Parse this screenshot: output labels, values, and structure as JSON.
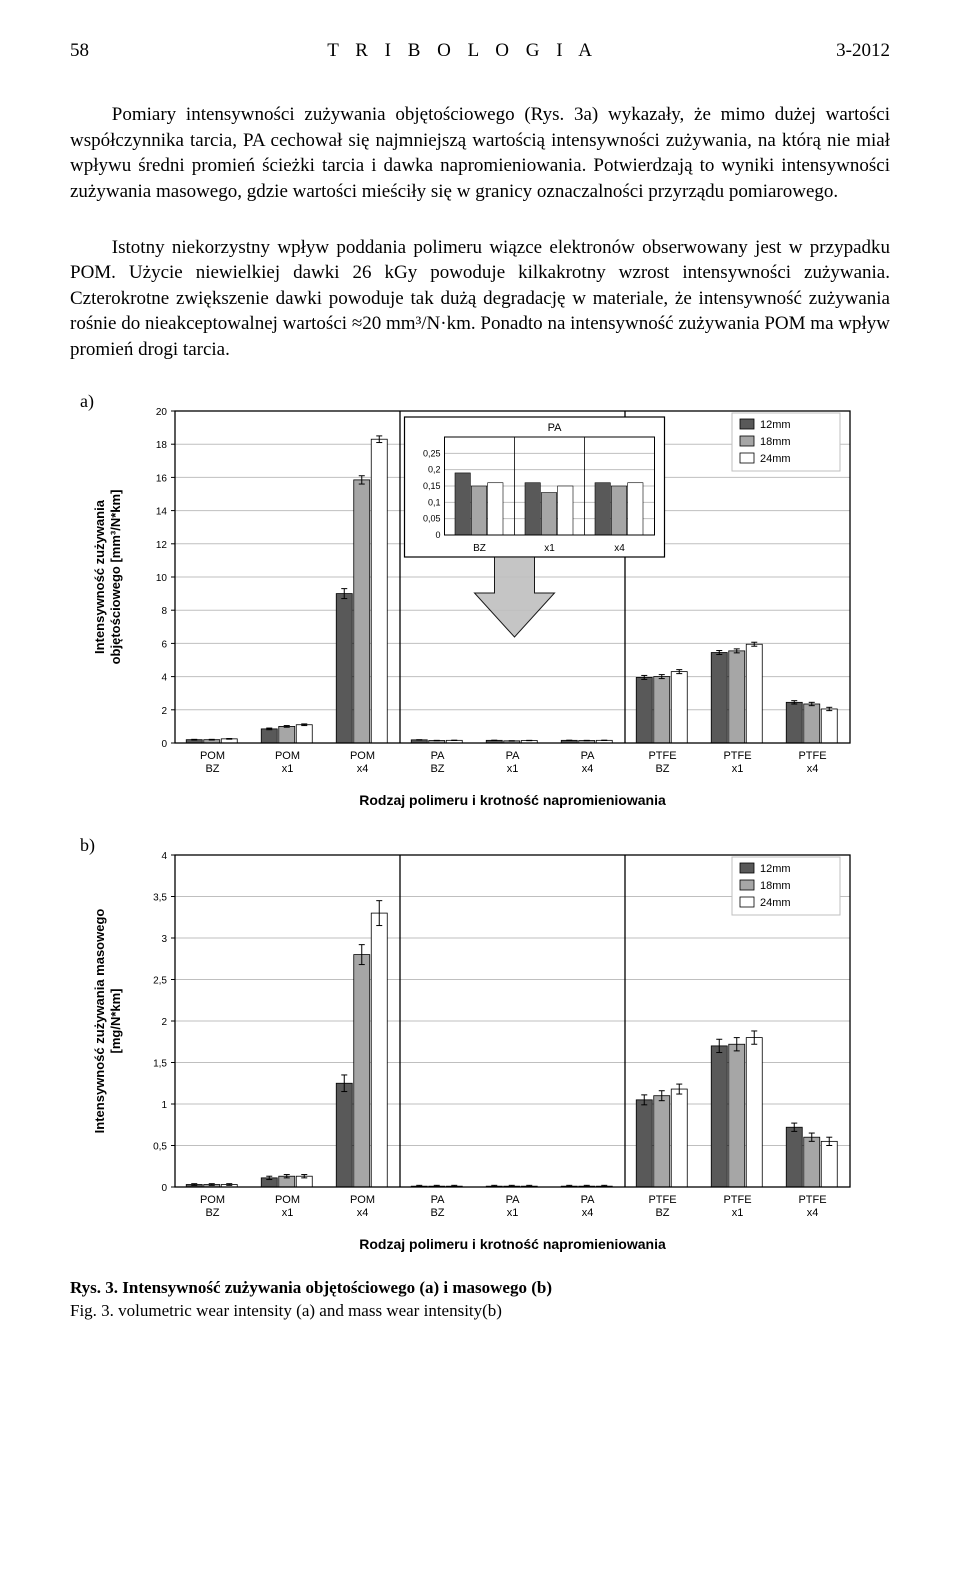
{
  "header": {
    "page_num": "58",
    "journal": "T R I B O L O G I A",
    "issue": "3-2012"
  },
  "paragraph": "Pomiary intensywności zużywania objętościowego (Rys. 3a) wykazały, że mimo dużej wartości współczynnika tarcia, PA cechował się najmniejszą wartością intensywności zużywania, na którą nie miał wpływu średni promień ścieżki tarcia i dawka napromieniowania. Potwierdzają to wyniki intensywności zużywania masowego, gdzie wartości mieściły się w granicy oznaczalności przyrządu pomiarowego.\n\nIstotny niekorzystny wpływ poddania polimeru wiązce elektronów obserwowany jest w przypadku POM. Użycie niewielkiej dawki 26 kGy powoduje kilkakrotny wzrost intensywności zużywania. Czterokrotne zwiększenie dawki powoduje tak dużą degradację w materiale, że intensywność zużywania rośnie do nieakceptowalnej wartości ≈20 mm³/N·km. Ponadto na intensywność zużywania POM ma wpływ promień drogi tarcia.",
  "categories": [
    "POM\nBZ",
    "POM\nx1",
    "POM\nx4",
    "PA\nBZ",
    "PA\nx1",
    "PA\nx4",
    "PTFE\nBZ",
    "PTFE\nx1",
    "PTFE\nx4"
  ],
  "x_title": "Rodzaj polimeru i krotność napromieniowania",
  "legend": {
    "s12": "12mm",
    "s18": "18mm",
    "s24": "24mm"
  },
  "colors": {
    "s12": "#595959",
    "s18": "#a6a6a6",
    "s24": "#ffffff",
    "border": "#000000",
    "grid": "#bfbfbf",
    "axis": "#000000",
    "bg": "#ffffff",
    "text": "#000000",
    "arrow": "#bfbfbf"
  },
  "chart_a": {
    "type": "bar",
    "y_title": "Intensywność zużywania\nobjętościowego [mm³/N*km]",
    "ylim": [
      0,
      20
    ],
    "ytick_step": 2,
    "label_fontsize": 12,
    "tick_fontsize": 10,
    "bar_group_width": 0.7,
    "bar_gap": 0.02,
    "values": {
      "s12": [
        0.2,
        0.85,
        9.0,
        0.19,
        0.16,
        0.16,
        3.95,
        5.45,
        2.45
      ],
      "s18": [
        0.2,
        1.0,
        15.85,
        0.15,
        0.13,
        0.15,
        4.0,
        5.55,
        2.35
      ],
      "s24": [
        0.25,
        1.1,
        18.3,
        0.16,
        0.15,
        0.16,
        4.3,
        5.95,
        2.05
      ]
    },
    "errors": {
      "s12": [
        0.02,
        0.05,
        0.3,
        0.01,
        0.01,
        0.01,
        0.12,
        0.12,
        0.1
      ],
      "s18": [
        0.02,
        0.05,
        0.25,
        0.01,
        0.01,
        0.01,
        0.12,
        0.12,
        0.1
      ],
      "s24": [
        0.02,
        0.05,
        0.2,
        0.01,
        0.01,
        0.01,
        0.12,
        0.12,
        0.1
      ]
    },
    "inset": {
      "title": "PA",
      "categories": [
        "BZ",
        "x1",
        "x4"
      ],
      "ylim": [
        0,
        0.3
      ],
      "yticks": [
        0,
        0.05,
        0.1,
        0.15,
        0.2,
        0.25
      ],
      "values": {
        "s12": [
          0.19,
          0.16,
          0.16
        ],
        "s18": [
          0.15,
          0.13,
          0.15
        ],
        "s24": [
          0.16,
          0.15,
          0.16
        ]
      }
    }
  },
  "chart_b": {
    "type": "bar",
    "y_title": "Intensywność zużywania masowego\n[mg/N*km]",
    "ylim": [
      0,
      4
    ],
    "ytick_step": 0.5,
    "label_fontsize": 12,
    "tick_fontsize": 10,
    "bar_group_width": 0.7,
    "bar_gap": 0.02,
    "values": {
      "s12": [
        0.03,
        0.11,
        1.25,
        0.01,
        0.01,
        0.01,
        1.05,
        1.7,
        0.72
      ],
      "s18": [
        0.03,
        0.13,
        2.8,
        0.01,
        0.01,
        0.01,
        1.1,
        1.72,
        0.6
      ],
      "s24": [
        0.03,
        0.13,
        3.3,
        0.01,
        0.01,
        0.01,
        1.18,
        1.8,
        0.55
      ]
    },
    "errors": {
      "s12": [
        0.01,
        0.02,
        0.1,
        0.01,
        0.01,
        0.01,
        0.06,
        0.08,
        0.05
      ],
      "s18": [
        0.01,
        0.02,
        0.12,
        0.01,
        0.01,
        0.01,
        0.06,
        0.08,
        0.05
      ],
      "s24": [
        0.01,
        0.02,
        0.15,
        0.01,
        0.01,
        0.01,
        0.06,
        0.08,
        0.05
      ]
    }
  },
  "caption": {
    "line1": "Rys. 3.  Intensywność zużywania objętościowego (a) i masowego (b)",
    "line2": "Fig. 3.   volumetric wear intensity (a) and mass wear intensity(b)"
  }
}
